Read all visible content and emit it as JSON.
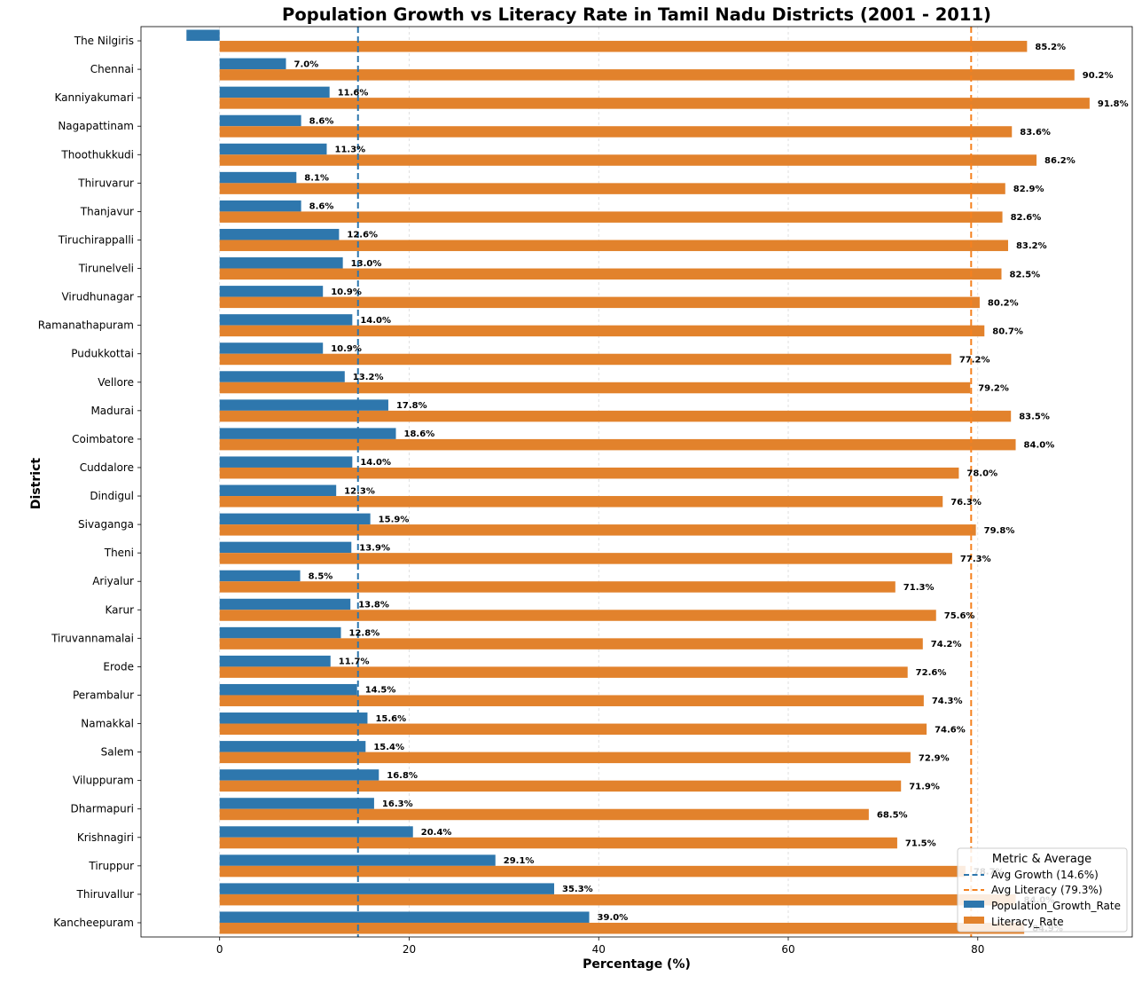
{
  "chart_data": {
    "type": "bar",
    "orientation": "horizontal",
    "title": "Population Growth vs Literacy Rate in Tamil Nadu Districts (2001 - 2011)",
    "xlabel": "Percentage (%)",
    "ylabel": "District",
    "xlim": [
      -8.3,
      96.3
    ],
    "xticks": [
      0,
      20,
      40,
      60,
      80
    ],
    "grid": "vertical dashed",
    "categories": [
      "The Nilgiris",
      "Chennai",
      "Kanniyakumari",
      "Nagapattinam",
      "Thoothukkudi",
      "Thiruvarur",
      "Thanjavur",
      "Tiruchirappalli",
      "Tirunelveli",
      "Virudhunagar",
      "Ramanathapuram",
      "Pudukkottai",
      "Vellore",
      "Madurai",
      "Coimbatore",
      "Cuddalore",
      "Dindigul",
      "Sivaganga",
      "Theni",
      "Ariyalur",
      "Karur",
      "Tiruvannamalai",
      "Erode",
      "Perambalur",
      "Namakkal",
      "Salem",
      "Viluppuram",
      "Dharmapuri",
      "Krishnagiri",
      "Tiruppur",
      "Thiruvallur",
      "Kancheepuram"
    ],
    "series": [
      {
        "name": "Population_Growth_Rate",
        "color": "#2e77ad",
        "values": [
          -3.5,
          7.0,
          11.6,
          8.6,
          11.3,
          8.1,
          8.6,
          12.6,
          13.0,
          10.9,
          14.0,
          10.9,
          13.2,
          17.8,
          18.6,
          14.0,
          12.3,
          15.9,
          13.9,
          8.5,
          13.8,
          12.8,
          11.7,
          14.5,
          15.6,
          15.4,
          16.8,
          16.3,
          20.4,
          29.1,
          35.3,
          39.0
        ],
        "labels": [
          "",
          "7.0%",
          "11.6%",
          "8.6%",
          "11.3%",
          "8.1%",
          "8.6%",
          "12.6%",
          "13.0%",
          "10.9%",
          "14.0%",
          "10.9%",
          "13.2%",
          "17.8%",
          "18.6%",
          "14.0%",
          "12.3%",
          "15.9%",
          "13.9%",
          "8.5%",
          "13.8%",
          "12.8%",
          "11.7%",
          "14.5%",
          "15.6%",
          "15.4%",
          "16.8%",
          "16.3%",
          "20.4%",
          "29.1%",
          "35.3%",
          "39.0%"
        ]
      },
      {
        "name": "Literacy_Rate",
        "color": "#e2822c",
        "values": [
          85.2,
          90.2,
          91.8,
          83.6,
          86.2,
          82.9,
          82.6,
          83.2,
          82.5,
          80.2,
          80.7,
          77.2,
          79.2,
          83.5,
          84.0,
          78.0,
          76.3,
          79.8,
          77.3,
          71.3,
          75.6,
          74.2,
          72.6,
          74.3,
          74.6,
          72.9,
          71.9,
          68.5,
          71.5,
          78.7,
          84.0,
          84.9
        ],
        "labels": [
          "85.2%",
          "90.2%",
          "91.8%",
          "83.6%",
          "86.2%",
          "82.9%",
          "82.6%",
          "83.2%",
          "82.5%",
          "80.2%",
          "80.7%",
          "77.2%",
          "79.2%",
          "83.5%",
          "84.0%",
          "78.0%",
          "76.3%",
          "79.8%",
          "77.3%",
          "71.3%",
          "75.6%",
          "74.2%",
          "72.6%",
          "74.3%",
          "74.6%",
          "72.9%",
          "71.9%",
          "68.5%",
          "71.5%",
          "78.7%",
          "84.0%",
          "84.9%"
        ]
      }
    ],
    "reference_lines": [
      {
        "name": "Avg Growth (14.6%)",
        "value": 14.6,
        "color": "#2e77ad"
      },
      {
        "name": "Avg Literacy (79.3%)",
        "value": 79.3,
        "color": "#f5811f"
      }
    ],
    "legend": {
      "title": "Metric & Average",
      "placement": "bottom-right",
      "entries": [
        "Avg Growth (14.6%)",
        "Avg Literacy (79.3%)",
        "Population_Growth_Rate",
        "Literacy_Rate"
      ]
    }
  }
}
